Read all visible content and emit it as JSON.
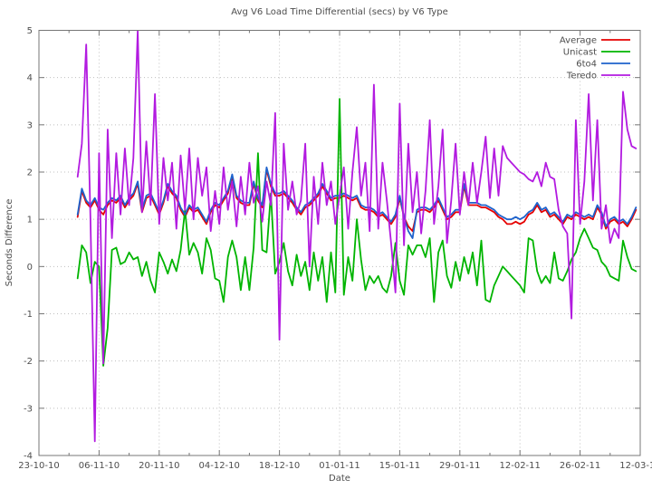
{
  "chart_data": {
    "type": "line",
    "title": "Avg V6 Load Time Differential (secs) by V6 Type",
    "xlabel": "Date",
    "ylabel": "Seconds Difference",
    "ylim": [
      -4,
      5
    ],
    "y_ticks": [
      -4,
      -3,
      -2,
      -1,
      0,
      1,
      2,
      3,
      4,
      5
    ],
    "grid": true,
    "legend_position": "top-right-inside",
    "x_domain_days": [
      0,
      140
    ],
    "x_tick_days": [
      0,
      14,
      28,
      42,
      56,
      70,
      84,
      98,
      112,
      126,
      140
    ],
    "x_tick_labels": [
      "23-10-10",
      "06-11-10",
      "20-11-10",
      "04-12-10",
      "18-12-10",
      "01-01-11",
      "15-01-11",
      "29-01-11",
      "12-02-11",
      "26-02-11",
      "12-03-11"
    ],
    "x_minor_tick_days": [
      7,
      21,
      35,
      49,
      63,
      77,
      91,
      105,
      119,
      133
    ],
    "first_day": 9,
    "series": [
      {
        "name": "Average",
        "color": "#e60000",
        "values": [
          1.05,
          1.6,
          1.35,
          1.25,
          1.4,
          1.2,
          1.1,
          1.3,
          1.4,
          1.35,
          1.45,
          1.25,
          1.4,
          1.5,
          1.75,
          1.15,
          1.45,
          1.5,
          1.3,
          1.1,
          1.35,
          1.7,
          1.55,
          1.45,
          1.2,
          1.05,
          1.25,
          1.15,
          1.2,
          1.05,
          0.9,
          1.15,
          1.3,
          1.25,
          1.4,
          1.55,
          1.9,
          1.45,
          1.35,
          1.3,
          1.3,
          1.75,
          1.4,
          1.25,
          2.05,
          1.7,
          1.5,
          1.5,
          1.55,
          1.45,
          1.35,
          1.2,
          1.1,
          1.25,
          1.3,
          1.4,
          1.5,
          1.7,
          1.55,
          1.4,
          1.45,
          1.45,
          1.5,
          1.45,
          1.4,
          1.45,
          1.25,
          1.2,
          1.2,
          1.15,
          1.05,
          1.1,
          1.0,
          0.9,
          1.05,
          1.45,
          1.05,
          0.85,
          0.75,
          1.15,
          1.2,
          1.2,
          1.15,
          1.25,
          1.4,
          1.2,
          1.0,
          1.05,
          1.15,
          1.15,
          1.7,
          1.3,
          1.3,
          1.3,
          1.25,
          1.25,
          1.2,
          1.15,
          1.05,
          1.0,
          0.9,
          0.9,
          0.95,
          0.9,
          0.95,
          1.1,
          1.15,
          1.3,
          1.15,
          1.2,
          1.05,
          1.1,
          1.0,
          0.9,
          1.05,
          1.0,
          1.1,
          1.05,
          1.0,
          1.05,
          1.0,
          1.25,
          1.1,
          0.8,
          0.95,
          1.0,
          0.9,
          0.95,
          0.85,
          1.0,
          1.2
        ]
      },
      {
        "name": "Unicast",
        "color": "#00b400",
        "values": [
          -0.25,
          0.45,
          0.3,
          -0.35,
          0.1,
          0.0,
          -2.1,
          -1.3,
          0.35,
          0.4,
          0.05,
          0.1,
          0.3,
          0.15,
          0.2,
          -0.2,
          0.1,
          -0.3,
          -0.55,
          0.3,
          0.1,
          -0.15,
          0.15,
          -0.1,
          0.35,
          1.2,
          0.25,
          0.5,
          0.3,
          -0.15,
          0.6,
          0.35,
          -0.25,
          -0.3,
          -0.75,
          0.2,
          0.55,
          0.2,
          -0.5,
          0.2,
          -0.5,
          0.4,
          2.4,
          0.35,
          0.3,
          1.55,
          -0.15,
          0.1,
          0.5,
          -0.1,
          -0.4,
          0.25,
          -0.2,
          0.1,
          -0.5,
          0.3,
          -0.3,
          0.2,
          -0.75,
          0.3,
          -0.55,
          3.55,
          -0.6,
          0.2,
          -0.3,
          1.0,
          0.15,
          -0.5,
          -0.2,
          -0.35,
          -0.2,
          -0.45,
          -0.55,
          -0.2,
          0.5,
          -0.3,
          -0.6,
          0.45,
          0.25,
          0.45,
          0.45,
          0.2,
          0.6,
          -0.75,
          0.3,
          0.55,
          -0.2,
          -0.45,
          0.1,
          -0.3,
          0.2,
          -0.15,
          0.3,
          -0.4,
          0.55,
          -0.7,
          -0.75,
          -0.4,
          -0.2,
          0.0,
          -0.1,
          -0.2,
          -0.3,
          -0.4,
          -0.55,
          0.6,
          0.55,
          -0.1,
          -0.35,
          -0.2,
          -0.35,
          0.3,
          -0.25,
          -0.3,
          -0.1,
          0.15,
          0.3,
          0.6,
          0.8,
          0.6,
          0.4,
          0.35,
          0.1,
          0.0,
          -0.2,
          -0.25,
          -0.3,
          0.55,
          0.2,
          -0.05,
          -0.1
        ]
      },
      {
        "name": "6to4",
        "color": "#1e62cc",
        "values": [
          1.1,
          1.65,
          1.4,
          1.3,
          1.45,
          1.25,
          1.2,
          1.35,
          1.45,
          1.4,
          1.5,
          1.3,
          1.45,
          1.55,
          1.8,
          1.2,
          1.5,
          1.55,
          1.35,
          1.15,
          1.4,
          1.75,
          1.6,
          1.5,
          1.25,
          1.1,
          1.3,
          1.2,
          1.25,
          1.1,
          0.95,
          1.2,
          1.35,
          1.3,
          1.45,
          1.6,
          1.95,
          1.5,
          1.4,
          1.35,
          1.35,
          1.8,
          1.45,
          1.3,
          2.1,
          1.75,
          1.55,
          1.55,
          1.6,
          1.5,
          1.4,
          1.25,
          1.15,
          1.3,
          1.35,
          1.45,
          1.55,
          1.75,
          1.6,
          1.45,
          1.5,
          1.5,
          1.55,
          1.5,
          1.45,
          1.5,
          1.3,
          1.25,
          1.25,
          1.2,
          1.1,
          1.15,
          1.05,
          0.95,
          1.1,
          1.5,
          1.05,
          0.75,
          0.6,
          1.2,
          1.25,
          1.25,
          1.2,
          1.3,
          1.45,
          1.25,
          1.05,
          1.1,
          1.2,
          1.2,
          1.75,
          1.35,
          1.35,
          1.35,
          1.3,
          1.3,
          1.25,
          1.2,
          1.1,
          1.05,
          1.0,
          1.0,
          1.05,
          1.0,
          1.05,
          1.15,
          1.2,
          1.35,
          1.2,
          1.25,
          1.1,
          1.15,
          1.05,
          0.95,
          1.1,
          1.05,
          1.15,
          1.1,
          1.05,
          1.1,
          1.05,
          1.3,
          1.15,
          0.85,
          1.0,
          1.05,
          0.95,
          1.0,
          0.9,
          1.05,
          1.25
        ]
      },
      {
        "name": "Teredo",
        "color": "#b21ae0",
        "values": [
          1.9,
          2.6,
          4.7,
          1.0,
          -3.7,
          2.4,
          -2.05,
          2.9,
          0.6,
          2.4,
          1.1,
          2.5,
          1.3,
          2.3,
          5.0,
          1.15,
          2.65,
          1.3,
          3.65,
          0.9,
          2.3,
          1.4,
          2.2,
          0.8,
          2.35,
          1.2,
          2.5,
          1.0,
          2.3,
          1.5,
          2.1,
          0.75,
          1.6,
          0.9,
          2.1,
          1.2,
          1.8,
          0.85,
          1.9,
          1.1,
          2.2,
          1.35,
          1.7,
          0.95,
          1.8,
          1.3,
          3.25,
          -1.55,
          2.6,
          1.2,
          1.8,
          1.1,
          1.4,
          2.6,
          0.0,
          1.9,
          0.9,
          2.2,
          1.3,
          1.8,
          0.9,
          1.5,
          2.1,
          0.8,
          2.0,
          2.95,
          1.5,
          2.2,
          0.75,
          3.85,
          0.8,
          2.2,
          1.4,
          0.5,
          -0.55,
          3.45,
          0.45,
          2.6,
          1.15,
          2.0,
          0.7,
          1.6,
          3.1,
          0.9,
          1.7,
          2.9,
          0.5,
          1.4,
          2.6,
          1.1,
          2.0,
          1.3,
          2.2,
          1.35,
          2.0,
          2.75,
          1.45,
          2.5,
          1.5,
          2.55,
          2.3,
          2.2,
          2.1,
          2.0,
          1.95,
          1.85,
          1.8,
          2.0,
          1.7,
          2.2,
          1.9,
          1.85,
          1.2,
          0.85,
          0.7,
          -1.1,
          3.1,
          0.9,
          1.8,
          3.65,
          1.4,
          3.1,
          0.8,
          1.3,
          0.5,
          0.8,
          0.6,
          3.7,
          2.9,
          2.55,
          2.5
        ]
      }
    ]
  }
}
